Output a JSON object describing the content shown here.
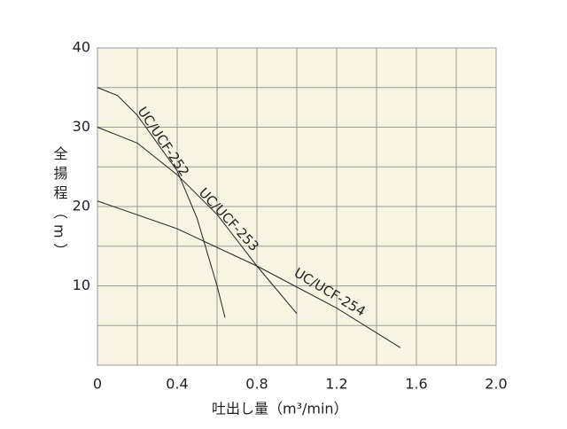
{
  "chart_data": {
    "type": "line",
    "x_label": "吐出し量（m³/min）",
    "y_label": "全揚程（m）",
    "xlim": [
      0,
      2.0
    ],
    "ylim": [
      0,
      40
    ],
    "xticks": [
      0,
      0.4,
      0.8,
      1.2,
      1.6,
      {
        "value": 2,
        "label": "2.0"
      }
    ],
    "yticks": [
      10,
      20,
      30,
      40
    ],
    "xgrid": [
      0.2,
      0.4,
      0.6,
      0.8,
      1.0,
      1.2,
      1.4,
      1.6,
      1.8
    ],
    "ygrid": [
      5,
      10,
      15,
      20,
      25,
      30,
      35
    ],
    "grid": true,
    "plot_background": "#f8f4e2",
    "series": [
      {
        "name": "UC/UCF-252",
        "color": "#222222",
        "x": [
          0,
          0.1,
          0.2,
          0.3,
          0.4,
          0.5,
          0.6,
          0.64
        ],
        "values": [
          35,
          34,
          31.5,
          28,
          24.5,
          18.5,
          10,
          6
        ]
      },
      {
        "name": "UC/UCF-253",
        "color": "#222222",
        "x": [
          0,
          0.2,
          0.4,
          0.6,
          0.8,
          1.0
        ],
        "values": [
          30,
          28,
          24,
          19,
          12.5,
          6.5
        ]
      },
      {
        "name": "UC/UCF-254",
        "color": "#222222",
        "x": [
          0,
          0.4,
          0.8,
          1.2,
          1.52
        ],
        "values": [
          20.7,
          17.2,
          12.5,
          7.2,
          2.2
        ]
      }
    ]
  }
}
